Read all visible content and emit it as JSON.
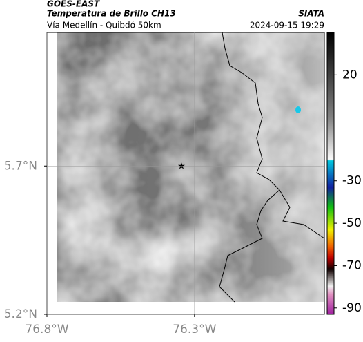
{
  "header": {
    "satellite": "GOES-EAST",
    "title": "Temperatura de Brillo CH13",
    "source": "SIATA",
    "region": "Vía Medellín - Quibdó 50km",
    "datetime": "2024-09-15 19:29"
  },
  "map": {
    "xlim": [
      -76.8,
      -75.86
    ],
    "ylim": [
      5.2,
      6.15
    ],
    "xticks": [
      {
        "value": -76.8,
        "label": "76.8°W"
      },
      {
        "value": -76.3,
        "label": "76.3°W"
      }
    ],
    "yticks": [
      {
        "value": 5.7,
        "label": "5.7°N"
      },
      {
        "value": 5.2,
        "label": "5.2°N"
      }
    ]
  },
  "colorbar": {
    "lim": [
      -93,
      40
    ],
    "ticks": [
      20,
      -30,
      -50,
      -70,
      -90
    ]
  }
}
